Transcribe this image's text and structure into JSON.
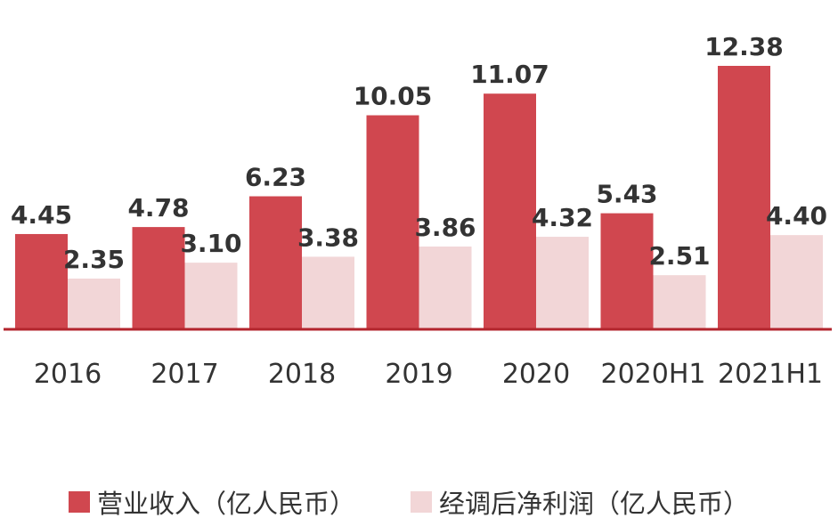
{
  "chart_data": {
    "type": "bar",
    "categories": [
      "2016",
      "2017",
      "2018",
      "2019",
      "2020",
      "2020H1",
      "2021H1"
    ],
    "series": [
      {
        "name": "营业收入（亿人民币）",
        "values": [
          4.45,
          4.78,
          6.23,
          10.05,
          11.07,
          5.43,
          12.38
        ],
        "labels": [
          "4.45",
          "4.78",
          "6.23",
          "10.05",
          "11.07",
          "5.43",
          "12.38"
        ],
        "color": "#d0474f"
      },
      {
        "name": "经调后净利润（亿人民币）",
        "values": [
          2.35,
          3.1,
          3.38,
          3.86,
          4.32,
          2.51,
          4.4
        ],
        "labels": [
          "2.35",
          "3.10",
          "3.38",
          "3.86",
          "4.32",
          "2.51",
          "4.40"
        ],
        "color": "#f2d6d7"
      }
    ],
    "ylim": [
      0,
      12.38
    ],
    "axis_color": "#b3252d",
    "grid": false,
    "legend_position": "bottom"
  }
}
